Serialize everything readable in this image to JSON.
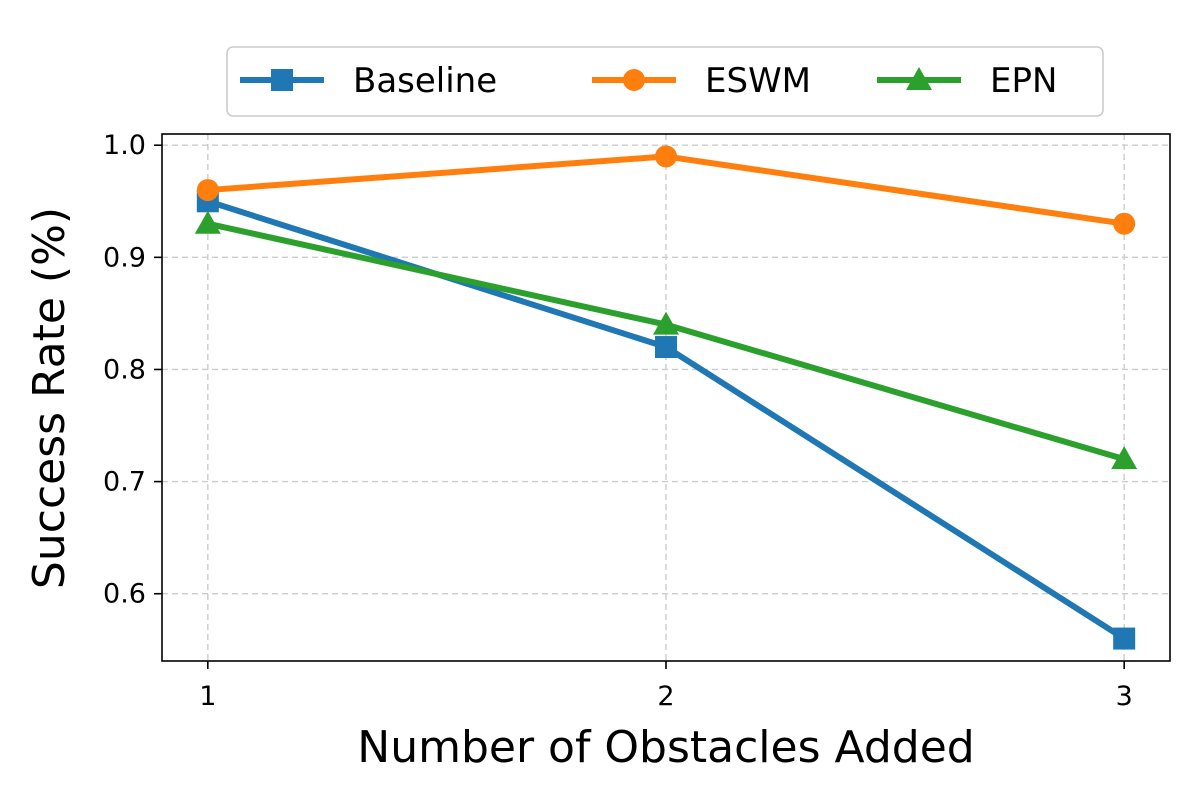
{
  "chart_data": {
    "type": "line",
    "title": "",
    "xlabel": "Number of Obstacles Added",
    "ylabel": "Success Rate (%)",
    "x": [
      1,
      2,
      3
    ],
    "xticks": [
      "1",
      "2",
      "3"
    ],
    "xlim": [
      0.9,
      3.1
    ],
    "ylim": [
      0.54,
      1.01
    ],
    "yticks": [
      0.6,
      0.7,
      0.8,
      0.9,
      1.0
    ],
    "ytick_labels": [
      "0.6",
      "0.7",
      "0.8",
      "0.9",
      "1.0"
    ],
    "grid": true,
    "legend_position": "top-center",
    "series": [
      {
        "name": "Baseline",
        "values": [
          0.95,
          0.82,
          0.56
        ],
        "color": "#1f77b4",
        "marker": "square"
      },
      {
        "name": "ESWM",
        "values": [
          0.96,
          0.99,
          0.93
        ],
        "color": "#ff7f0e",
        "marker": "circle"
      },
      {
        "name": "EPN",
        "values": [
          0.93,
          0.84,
          0.72
        ],
        "color": "#2ca02c",
        "marker": "triangle"
      }
    ]
  }
}
